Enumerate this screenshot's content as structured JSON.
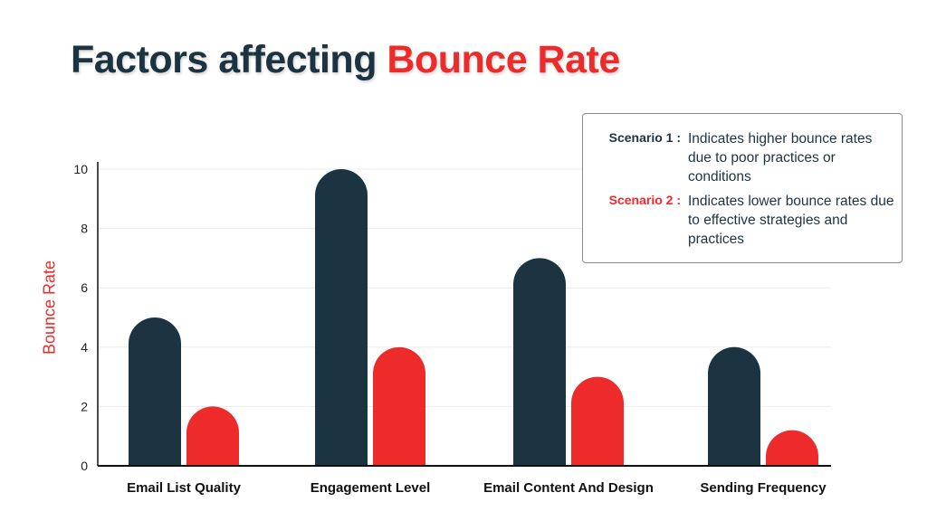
{
  "title": {
    "main": "Factors affecting",
    "accent": "Bounce Rate"
  },
  "colors": {
    "dark": "#1c3442",
    "red": "#ee2b2b"
  },
  "legend": [
    {
      "name": "Scenario 1 :",
      "description": "Indicates higher bounce rates due to poor practices or conditions",
      "color": "#1c3442"
    },
    {
      "name": "Scenario 2 :",
      "description": "Indicates lower bounce rates due to effective strategies and practices",
      "color": "#ee2b2b"
    }
  ],
  "chart_data": {
    "type": "bar",
    "title": "Factors affecting Bounce Rate",
    "xlabel": "",
    "ylabel": "Bounce Rate",
    "ylim": [
      0,
      10
    ],
    "yticks": [
      "0",
      "2",
      "4",
      "6",
      "8",
      "10"
    ],
    "categories": [
      "Email List Quality",
      "Engagement Level",
      "Email Content And Design",
      "Sending Frequency"
    ],
    "series": [
      {
        "name": "Scenario 1",
        "color": "#1c3442",
        "values": [
          5,
          10,
          7,
          4
        ]
      },
      {
        "name": "Scenario 2",
        "color": "#ee2b2b",
        "values": [
          2,
          4,
          3,
          1.2
        ]
      }
    ],
    "grid": true,
    "legend_position": "top-right"
  }
}
